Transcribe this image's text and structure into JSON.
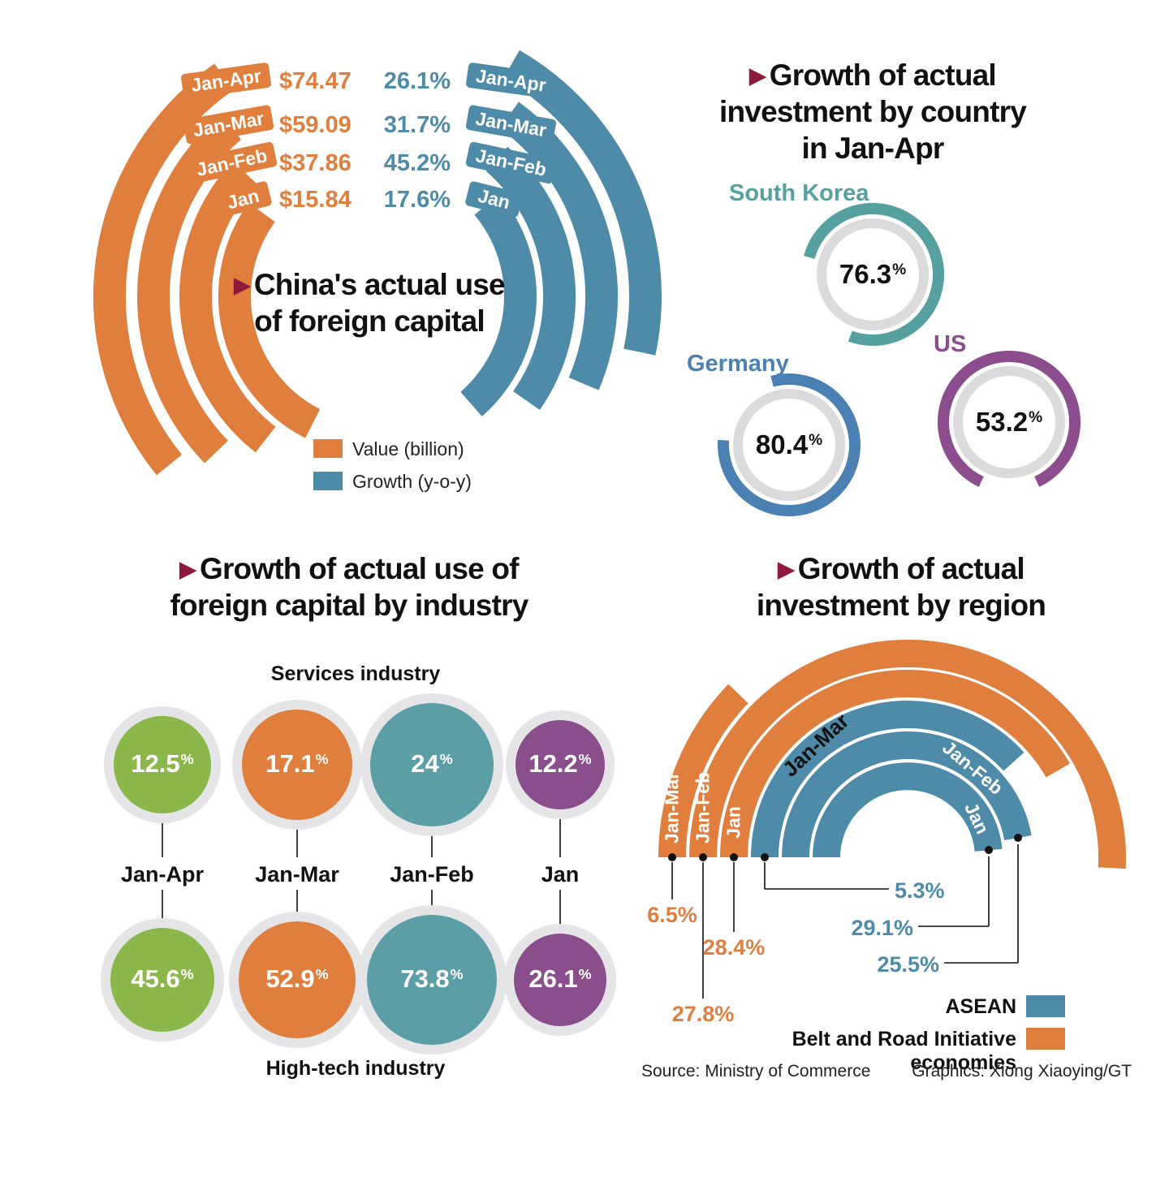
{
  "chart_data": [
    {
      "type": "bar",
      "variant": "concentric-arcs",
      "title": "China's actual use of foreign capital",
      "title_lines": [
        "China's actual use",
        "of foreign capital"
      ],
      "categories": [
        "Jan-Apr",
        "Jan-Mar",
        "Jan-Feb",
        "Jan"
      ],
      "series": [
        {
          "name": "Value (billion)",
          "color": "#E07F3D",
          "values": [
            "$74.47",
            "$59.09",
            "$37.86",
            "$15.84"
          ]
        },
        {
          "name": "Growth (y-o-y)",
          "color": "#4D8BA8",
          "values": [
            "26.1%",
            "31.7%",
            "45.2%",
            "17.6%"
          ]
        }
      ]
    },
    {
      "type": "pie",
      "variant": "donut-trio",
      "title": "Growth of actual investment by country in Jan-Apr",
      "title_lines": [
        "Growth of actual",
        "investment by country",
        "in Jan-Apr"
      ],
      "items": [
        {
          "label": "South Korea",
          "value": "76.3%",
          "color": "#57A0A0"
        },
        {
          "label": "Germany",
          "value": "80.4%",
          "color": "#4B80B2"
        },
        {
          "label": "US",
          "value": "53.2%",
          "color": "#8C4D8E"
        }
      ]
    },
    {
      "type": "bubble",
      "title": "Growth of actual use of foreign capital by industry",
      "title_lines": [
        "Growth of actual use of",
        "foreign capital by industry"
      ],
      "categories": [
        "Jan-Apr",
        "Jan-Mar",
        "Jan-Feb",
        "Jan"
      ],
      "series": [
        {
          "name": "Services industry",
          "values": [
            "12.5%",
            "17.1%",
            "24%",
            "12.2%"
          ],
          "colors": [
            "#8CB84B",
            "#E07F3D",
            "#5B9EA6",
            "#8A4E8C"
          ]
        },
        {
          "name": "High-tech industry",
          "values": [
            "45.6%",
            "52.9%",
            "73.8%",
            "26.1%"
          ],
          "colors": [
            "#8CB84B",
            "#E07F3D",
            "#5B9EA6",
            "#8A4E8C"
          ]
        }
      ]
    },
    {
      "type": "bar",
      "variant": "radial-half-arcs",
      "title": "Growth of actual investment by region",
      "title_lines": [
        "Growth of actual",
        "investment by region"
      ],
      "categories": [
        "Jan-Mar",
        "Jan-Feb",
        "Jan"
      ],
      "series": [
        {
          "name": "Belt and Road Initiative economies",
          "color": "#E07F3D",
          "values": [
            "6.5%",
            "27.8%",
            "28.4%"
          ]
        },
        {
          "name": "ASEAN",
          "color": "#4D8BA8",
          "values": [
            "5.3%",
            "25.5%",
            "29.1%"
          ]
        }
      ]
    }
  ],
  "footer": {
    "source": "Source: Ministry of Commerce",
    "credit": "Graphics: Xiong Xiaoying/GT"
  }
}
